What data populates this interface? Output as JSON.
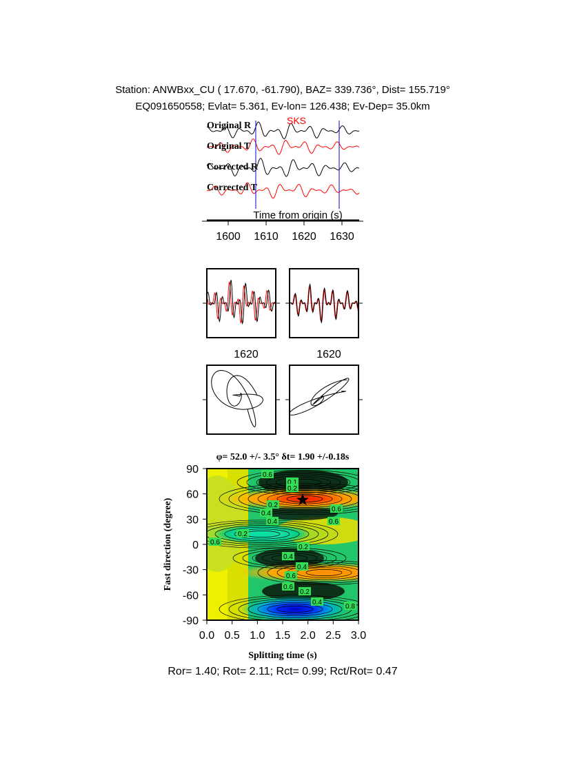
{
  "header": {
    "line1": "Station: ANWBxx_CU (  17.670,  -61.790), BAZ=  339.736°, Dist=  155.719°",
    "line2": "EQ091650558; Evlat=   5.361, Ev-lon= 126.438; Ev-Dep= 35.0km"
  },
  "traces": {
    "phase_label": "SKS",
    "labels": [
      "Original R",
      "Original T",
      "Corrected R",
      "Corrected T"
    ],
    "xlabel": "Time from origin (s)",
    "ticks": [
      "1600",
      "1610",
      "1620",
      "1630"
    ]
  },
  "particle": {
    "ticks": [
      "1620",
      "1620"
    ]
  },
  "grid": {
    "title": "φ= 52.0 +/- 3.5° δt= 1.90 +/-0.18s",
    "xlabel": "Splitting time (s)",
    "ylabel": "Fast direction (degree)",
    "xticks": [
      "0.0",
      "0.5",
      "1.0",
      "1.5",
      "2.0",
      "2.5",
      "3.0"
    ],
    "yticks": [
      "90",
      "60",
      "30",
      "0",
      "-30",
      "-60",
      "-90"
    ],
    "contour_labels": [
      "0.6",
      "0.1",
      "0.2",
      "0.4",
      "0.2",
      "0.6",
      "0.4",
      "0.6",
      "0.2",
      "0.4",
      "0.2",
      "0.4",
      "0.6",
      "0.6",
      "0.2",
      "0.4",
      "0.6",
      "0.8"
    ]
  },
  "footer": "Ror= 1.40; Rot= 2.11; Rct= 0.99; Rct/Rot= 0.47",
  "chart_data": [
    {
      "type": "line",
      "title": "",
      "xlabel": "Time from origin (s)",
      "xlim": [
        1593,
        1635
      ],
      "xticks": [
        1600,
        1610,
        1620,
        1630
      ],
      "markers": {
        "window_start": 1607.5,
        "window_end": 1629.5
      },
      "series": [
        {
          "name": "Original R",
          "color": "#000000"
        },
        {
          "name": "Original T",
          "color": "#ff0000"
        },
        {
          "name": "Corrected R",
          "color": "#000000"
        },
        {
          "name": "Corrected T",
          "color": "#ff0000"
        }
      ]
    },
    {
      "type": "heatmap",
      "title": "φ= 52.0 +/- 3.5° δt= 1.90 +/-0.18s",
      "xlabel": "Splitting time (s)",
      "ylabel": "Fast direction (degree)",
      "xlim": [
        0,
        3
      ],
      "ylim": [
        -90,
        90
      ],
      "best_fit": {
        "dt": 1.9,
        "phi": 52.0
      },
      "colors": {
        "min": "#ff2200",
        "low": "#ff9900",
        "mid": "#dddd00",
        "high": "#00cc66",
        "max": "#0000dd"
      }
    }
  ]
}
